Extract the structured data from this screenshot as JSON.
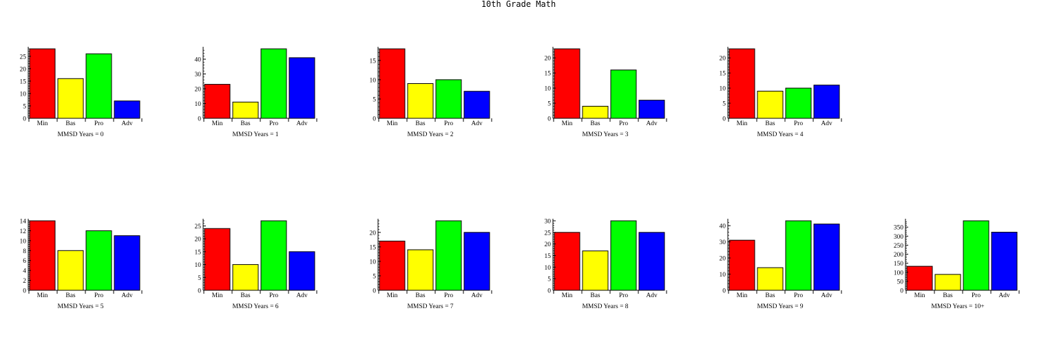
{
  "title": "10th Grade Math",
  "colors": {
    "Min": "#ff0000",
    "Bas": "#ffff00",
    "Pro": "#00ff00",
    "Adv": "#0000ff"
  },
  "chart_data": [
    {
      "type": "bar",
      "categories": [
        "Min",
        "Bas",
        "Pro",
        "Adv"
      ],
      "values": [
        28,
        16,
        26,
        7
      ],
      "xlabel": "MMSD Years = 0",
      "ylim": [
        0,
        28
      ],
      "yticks": [
        0,
        5,
        10,
        15,
        20,
        25
      ]
    },
    {
      "type": "bar",
      "categories": [
        "Min",
        "Bas",
        "Pro",
        "Adv"
      ],
      "values": [
        23,
        11,
        47,
        41
      ],
      "xlabel": "MMSD Years = 1",
      "ylim": [
        0,
        47
      ],
      "yticks": [
        0,
        10,
        20,
        30,
        40
      ]
    },
    {
      "type": "bar",
      "categories": [
        "Min",
        "Bas",
        "Pro",
        "Adv"
      ],
      "values": [
        18,
        9,
        10,
        7
      ],
      "xlabel": "MMSD Years = 2",
      "ylim": [
        0,
        18
      ],
      "yticks": [
        0,
        5,
        10,
        15
      ]
    },
    {
      "type": "bar",
      "categories": [
        "Min",
        "Bas",
        "Pro",
        "Adv"
      ],
      "values": [
        23,
        4,
        16,
        6
      ],
      "xlabel": "MMSD Years = 3",
      "ylim": [
        0,
        23
      ],
      "yticks": [
        0,
        5,
        10,
        15,
        20
      ]
    },
    {
      "type": "bar",
      "categories": [
        "Min",
        "Bas",
        "Pro",
        "Adv"
      ],
      "values": [
        23,
        9,
        10,
        11
      ],
      "xlabel": "MMSD Years = 4",
      "ylim": [
        0,
        23
      ],
      "yticks": [
        0,
        5,
        10,
        15,
        20
      ]
    },
    {
      "type": "bar",
      "categories": [
        "Min",
        "Bas",
        "Pro",
        "Adv"
      ],
      "values": [
        14,
        8,
        12,
        11
      ],
      "xlabel": "MMSD Years = 5",
      "ylim": [
        0,
        14
      ],
      "yticks": [
        0,
        2,
        4,
        6,
        8,
        10,
        12,
        14
      ]
    },
    {
      "type": "bar",
      "categories": [
        "Min",
        "Bas",
        "Pro",
        "Adv"
      ],
      "values": [
        24,
        10,
        27,
        15
      ],
      "xlabel": "MMSD Years = 6",
      "ylim": [
        0,
        27
      ],
      "yticks": [
        0,
        5,
        10,
        15,
        20,
        25
      ]
    },
    {
      "type": "bar",
      "categories": [
        "Min",
        "Bas",
        "Pro",
        "Adv"
      ],
      "values": [
        17,
        14,
        24,
        20
      ],
      "xlabel": "MMSD Years = 7",
      "ylim": [
        0,
        24
      ],
      "yticks": [
        0,
        5,
        10,
        15,
        20
      ]
    },
    {
      "type": "bar",
      "categories": [
        "Min",
        "Bas",
        "Pro",
        "Adv"
      ],
      "values": [
        25,
        17,
        30,
        25
      ],
      "xlabel": "MMSD Years = 8",
      "ylim": [
        0,
        30
      ],
      "yticks": [
        0,
        5,
        10,
        15,
        20,
        25,
        30
      ]
    },
    {
      "type": "bar",
      "categories": [
        "Min",
        "Bas",
        "Pro",
        "Adv"
      ],
      "values": [
        31,
        14,
        43,
        41
      ],
      "xlabel": "MMSD Years = 9",
      "ylim": [
        0,
        43
      ],
      "yticks": [
        0,
        10,
        20,
        30,
        40
      ]
    },
    {
      "type": "bar",
      "categories": [
        "Min",
        "Bas",
        "Pro",
        "Adv"
      ],
      "values": [
        133,
        88,
        385,
        322
      ],
      "xlabel": "MMSD Years = 10+",
      "ylim": [
        0,
        385
      ],
      "yticks": [
        0,
        50,
        100,
        150,
        200,
        250,
        300,
        350
      ]
    }
  ]
}
